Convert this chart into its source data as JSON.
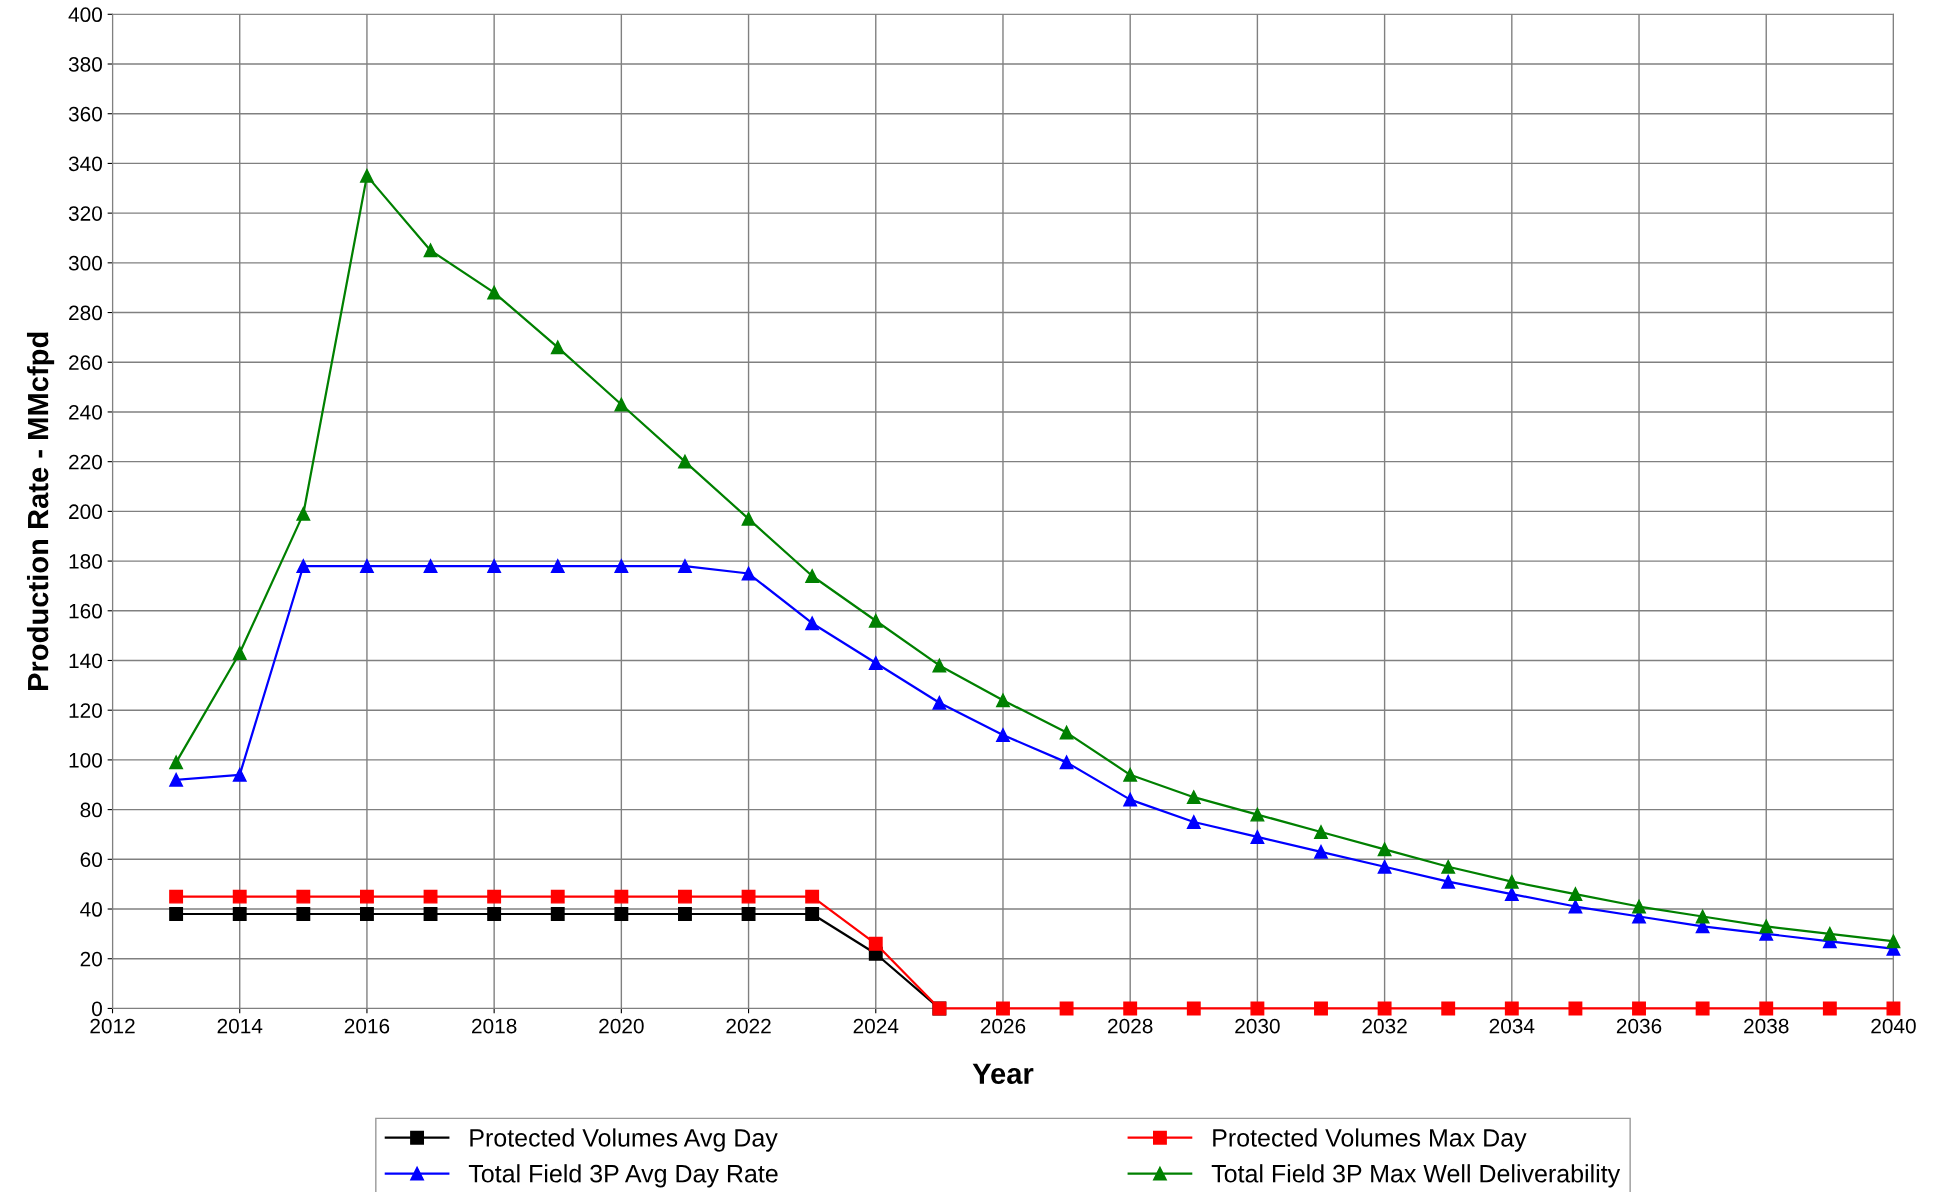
{
  "chart_data": {
    "type": "line",
    "xlabel": "Year",
    "ylabel": "Production Rate - MMcfpd",
    "x": [
      2013,
      2014,
      2015,
      2016,
      2017,
      2018,
      2019,
      2020,
      2021,
      2022,
      2023,
      2024,
      2025,
      2026,
      2027,
      2028,
      2029,
      2030,
      2031,
      2032,
      2033,
      2034,
      2035,
      2036,
      2037,
      2038,
      2039,
      2040
    ],
    "series": [
      {
        "name": "Protected Volumes Avg Day",
        "color": "#000000",
        "marker": "square",
        "values": [
          38,
          38,
          38,
          38,
          38,
          38,
          38,
          38,
          38,
          38,
          38,
          22,
          0,
          null,
          null,
          null,
          null,
          null,
          null,
          null,
          null,
          null,
          null,
          null,
          null,
          null,
          null,
          null
        ]
      },
      {
        "name": "Protected Volumes Max Day",
        "color": "#ff0000",
        "marker": "square",
        "values": [
          45,
          45,
          45,
          45,
          45,
          45,
          45,
          45,
          45,
          45,
          45,
          26,
          0,
          0,
          0,
          0,
          0,
          0,
          0,
          0,
          0,
          0,
          0,
          0,
          0,
          0,
          0,
          0
        ]
      },
      {
        "name": "Total Field 3P Avg Day Rate",
        "color": "#0000ff",
        "marker": "triangle",
        "values": [
          92,
          94,
          178,
          178,
          178,
          178,
          178,
          178,
          178,
          175,
          155,
          139,
          123,
          110,
          99,
          84,
          75,
          69,
          63,
          57,
          51,
          46,
          41,
          37,
          33,
          30,
          27,
          24
        ]
      },
      {
        "name": "Total Field 3P Max Well Deliverability",
        "color": "#008000",
        "marker": "triangle",
        "values": [
          99,
          143,
          199,
          335,
          305,
          288,
          266,
          243,
          220,
          197,
          174,
          156,
          138,
          124,
          111,
          94,
          85,
          78,
          71,
          64,
          57,
          51,
          46,
          41,
          37,
          33,
          30,
          27
        ]
      }
    ],
    "xlim": [
      2012,
      2040
    ],
    "xticks": [
      2012,
      2014,
      2016,
      2018,
      2020,
      2022,
      2024,
      2026,
      2028,
      2030,
      2032,
      2034,
      2036,
      2038,
      2040
    ],
    "ylim": [
      0,
      400
    ],
    "yticks": [
      0,
      20,
      40,
      60,
      80,
      100,
      120,
      140,
      160,
      180,
      200,
      220,
      240,
      260,
      280,
      300,
      320,
      340,
      360,
      380,
      400
    ],
    "grid": true,
    "legend": "bottom",
    "line_style": "solid"
  }
}
